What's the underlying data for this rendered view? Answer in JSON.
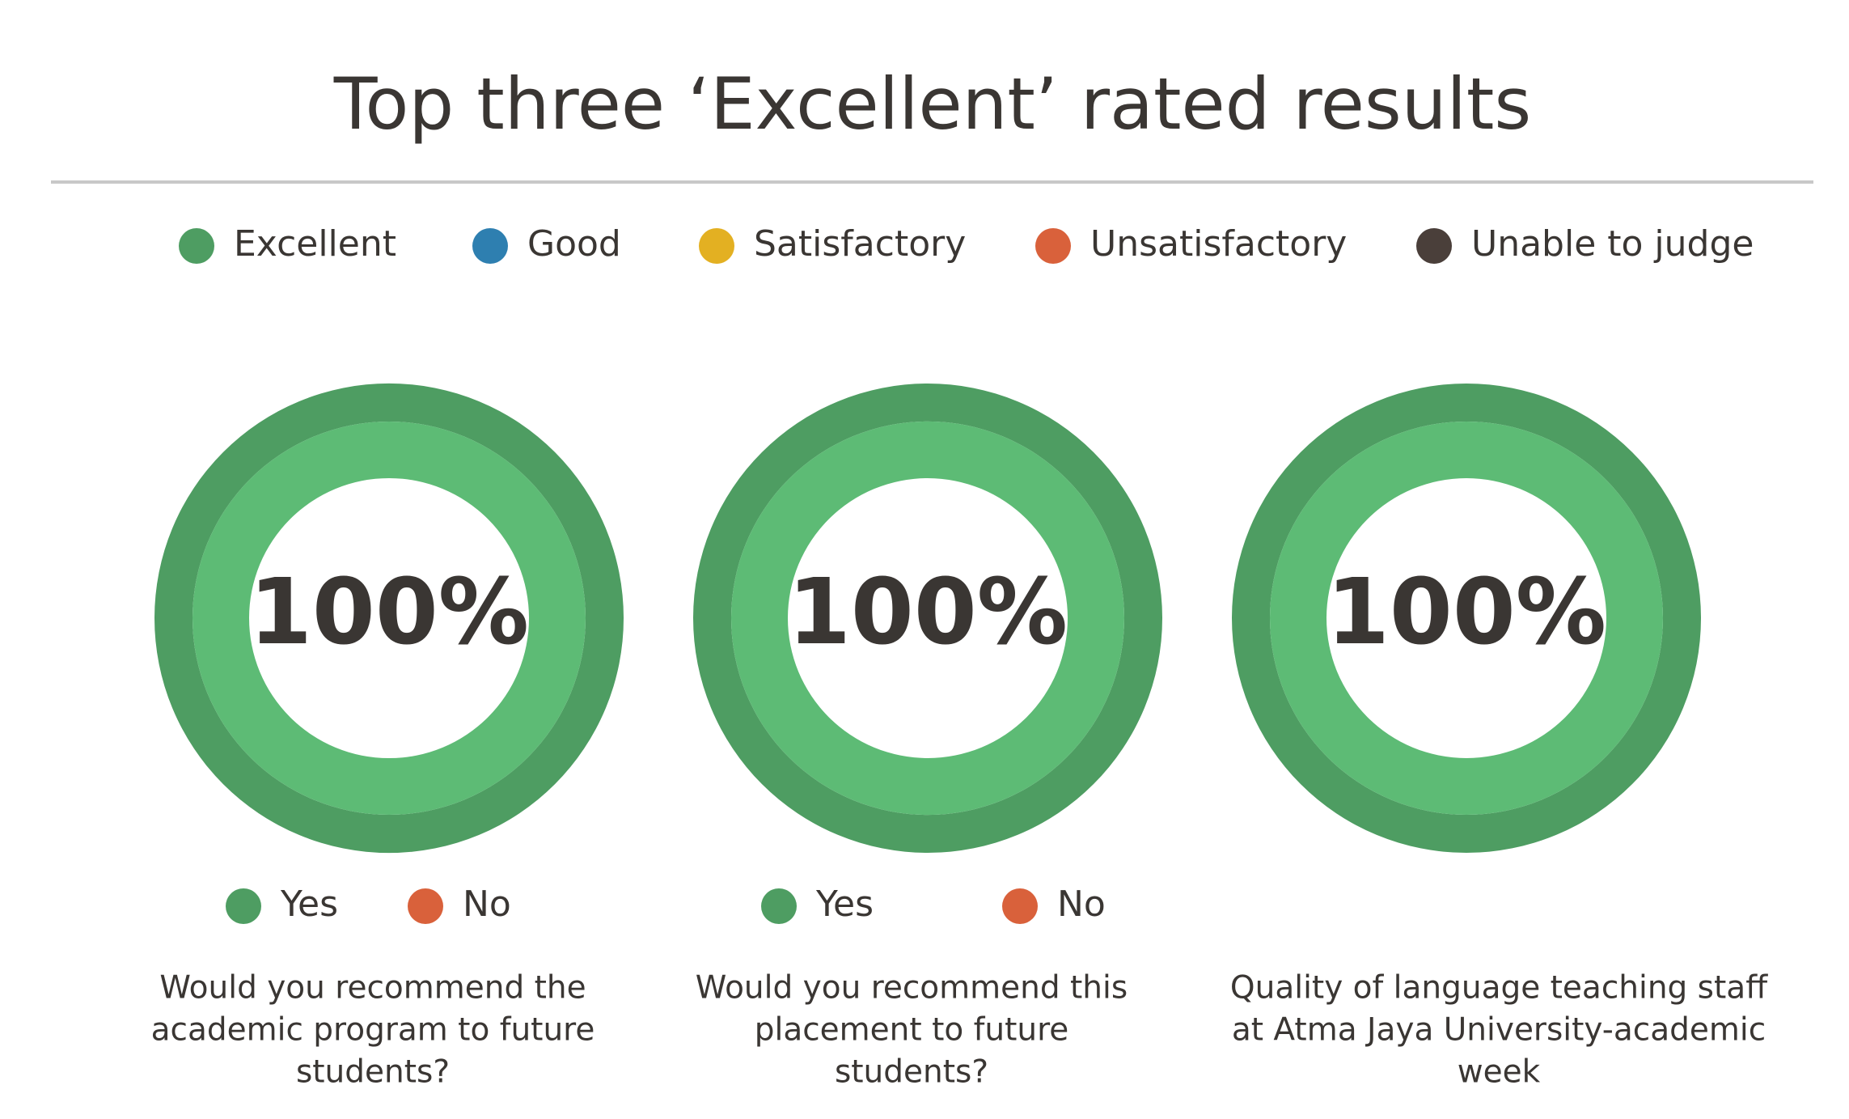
{
  "title": "Top three ‘Excellent’ rated results",
  "chart_data": [
    {
      "type": "pie",
      "categories": [
        "Yes",
        "No"
      ],
      "values": [
        100,
        0
      ],
      "colors": [
        "#4e9d62",
        "#d9613b"
      ],
      "center_value": 100,
      "center_label": "100%",
      "caption": [
        "Would you recommend the",
        "academic program to future",
        "students?"
      ]
    },
    {
      "type": "pie",
      "categories": [
        "Yes",
        "No"
      ],
      "values": [
        100,
        0
      ],
      "colors": [
        "#4e9d62",
        "#d9613b"
      ],
      "center_value": 100,
      "center_label": "100%",
      "caption": [
        "Would you recommend this",
        "placement to future",
        "students?"
      ]
    },
    {
      "type": "pie",
      "categories": [
        "Excellent",
        "Good",
        "Satisfactory",
        "Unsatisfactory",
        "Unable to judge"
      ],
      "values": [
        100,
        0,
        0,
        0,
        0
      ],
      "colors": [
        "#4e9d62",
        "#2e7fb0",
        "#e3b022",
        "#d9613b",
        "#4a3f3a"
      ],
      "center_value": 100,
      "center_label": "100%",
      "caption": [
        "Quality of language teaching staff",
        "at Atma Jaya University-academic",
        "week"
      ]
    }
  ]
}
